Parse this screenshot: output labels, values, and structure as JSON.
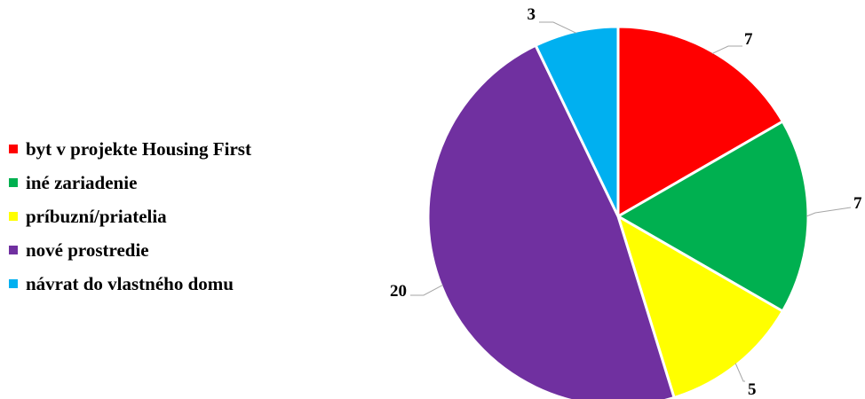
{
  "chart_data": {
    "type": "pie",
    "categories": [
      "byt v projekte Housing First",
      "iné zariadenie",
      "príbuzní/priatelia",
      "nové prostredie",
      "návrat do vlastného domu"
    ],
    "values": [
      7,
      7,
      5,
      20,
      3
    ],
    "data_labels": [
      "7",
      "7",
      "5",
      "20",
      "3"
    ],
    "colors": [
      "#ff0000",
      "#00b050",
      "#ffff00",
      "#7030a0",
      "#00b0f0"
    ],
    "legend_position": "left",
    "title": ""
  }
}
